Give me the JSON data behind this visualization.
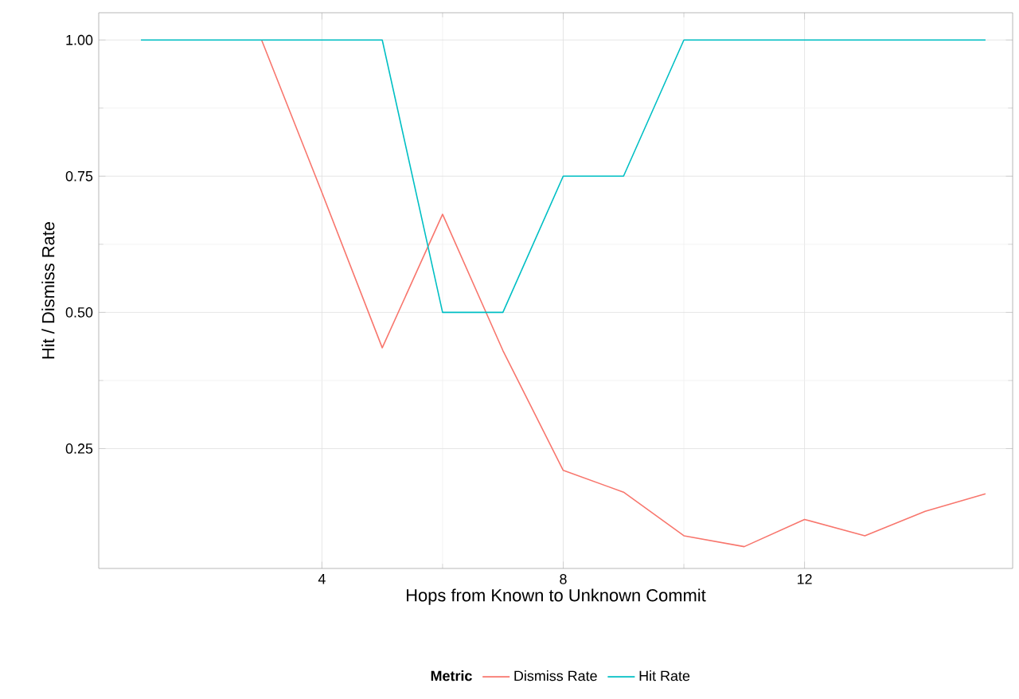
{
  "chart_data": {
    "type": "line",
    "xlabel": "Hops from Known to Unknown Commit",
    "ylabel": "Hit / Dismiss Rate",
    "legend_title": "Metric",
    "x": [
      1,
      2,
      3,
      4,
      5,
      6,
      7,
      8,
      9,
      10,
      11,
      12,
      13,
      14,
      15
    ],
    "series": [
      {
        "name": "Dismiss Rate",
        "color": "#F8766D",
        "values": [
          null,
          null,
          1,
          0.72,
          0.435,
          0.68,
          0.43,
          0.21,
          0.17,
          0.09,
          0.07,
          0.12,
          0.09,
          0.135,
          0.167
        ]
      },
      {
        "name": "Hit Rate",
        "color": "#00BFC4",
        "values": [
          1,
          1,
          1,
          1,
          1,
          0.5,
          0.5,
          0.75,
          0.75,
          1,
          1,
          1,
          1,
          1,
          1
        ]
      }
    ],
    "xlim": [
      0.3,
      15.45
    ],
    "ylim": [
      0.03,
      1.05
    ],
    "xticks": [
      4,
      8,
      12
    ],
    "yticks": [
      {
        "value": 0.25,
        "label": "0.25"
      },
      {
        "value": 0.5,
        "label": "0.50"
      },
      {
        "value": 0.75,
        "label": "0.75"
      },
      {
        "value": 1,
        "label": "1.00"
      }
    ],
    "grid": true,
    "legend": "bottom",
    "marker": "none",
    "line_style": "solid"
  }
}
